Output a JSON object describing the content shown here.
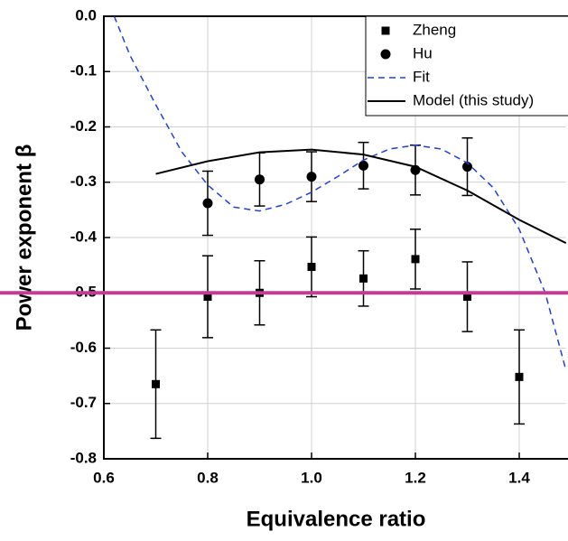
{
  "chart_data": {
    "type": "scatter-line",
    "xlabel": "Equivalence ratio",
    "ylabel": "Power exponent β",
    "xlim": [
      0.6,
      1.49
    ],
    "ylim": [
      -0.8,
      0.0
    ],
    "xticks": [
      0.6,
      0.8,
      {
        "value": 1.0,
        "label": "1.0"
      },
      1.2,
      1.4
    ],
    "yticks": [
      {
        "value": 0.0,
        "label": "0.0"
      },
      -0.1,
      -0.2,
      -0.3,
      -0.4,
      -0.5,
      -0.6,
      -0.7,
      -0.8
    ],
    "grid": true,
    "legend": "top-right",
    "highlight_line": {
      "value": -0.5,
      "color": "#c23c94"
    },
    "series": [
      {
        "name": "Zheng",
        "marker": "square",
        "color": "#000000",
        "x": [
          0.7,
          0.8,
          0.9,
          1.0,
          1.1,
          1.2,
          1.3,
          1.4
        ],
        "values": [
          -0.665,
          -0.507,
          -0.5,
          -0.453,
          -0.474,
          -0.439,
          -0.507,
          -0.652
        ],
        "errors": [
          0.098,
          0.074,
          0.058,
          0.054,
          0.05,
          0.054,
          0.063,
          0.085
        ]
      },
      {
        "name": "Hu",
        "marker": "circle",
        "color": "#000000",
        "x": [
          0.8,
          0.9,
          1.0,
          1.1,
          1.2,
          1.3
        ],
        "values": [
          -0.338,
          -0.295,
          -0.29,
          -0.27,
          -0.278,
          -0.272
        ],
        "errors": [
          0.058,
          0.048,
          0.045,
          0.042,
          0.045,
          0.052
        ]
      },
      {
        "name": "Fit",
        "line": "dashed",
        "color": "#1f3fe0",
        "x": [
          0.62,
          0.65,
          0.7,
          0.75,
          0.8,
          0.85,
          0.9,
          0.95,
          1.0,
          1.05,
          1.1,
          1.15,
          1.2,
          1.25,
          1.3,
          1.35,
          1.4,
          1.45,
          1.49
        ],
        "values": [
          0.0,
          -0.07,
          -0.16,
          -0.245,
          -0.305,
          -0.345,
          -0.352,
          -0.34,
          -0.318,
          -0.29,
          -0.26,
          -0.24,
          -0.233,
          -0.24,
          -0.265,
          -0.31,
          -0.385,
          -0.5,
          -0.64
        ]
      },
      {
        "name": "Model (this study)",
        "line": "solid",
        "color": "#000000",
        "x": [
          0.7,
          0.8,
          0.9,
          1.0,
          1.1,
          1.2,
          1.3,
          1.4,
          1.49
        ],
        "values": [
          -0.285,
          -0.262,
          -0.246,
          -0.241,
          -0.25,
          -0.272,
          -0.315,
          -0.368,
          -0.41
        ]
      }
    ]
  }
}
